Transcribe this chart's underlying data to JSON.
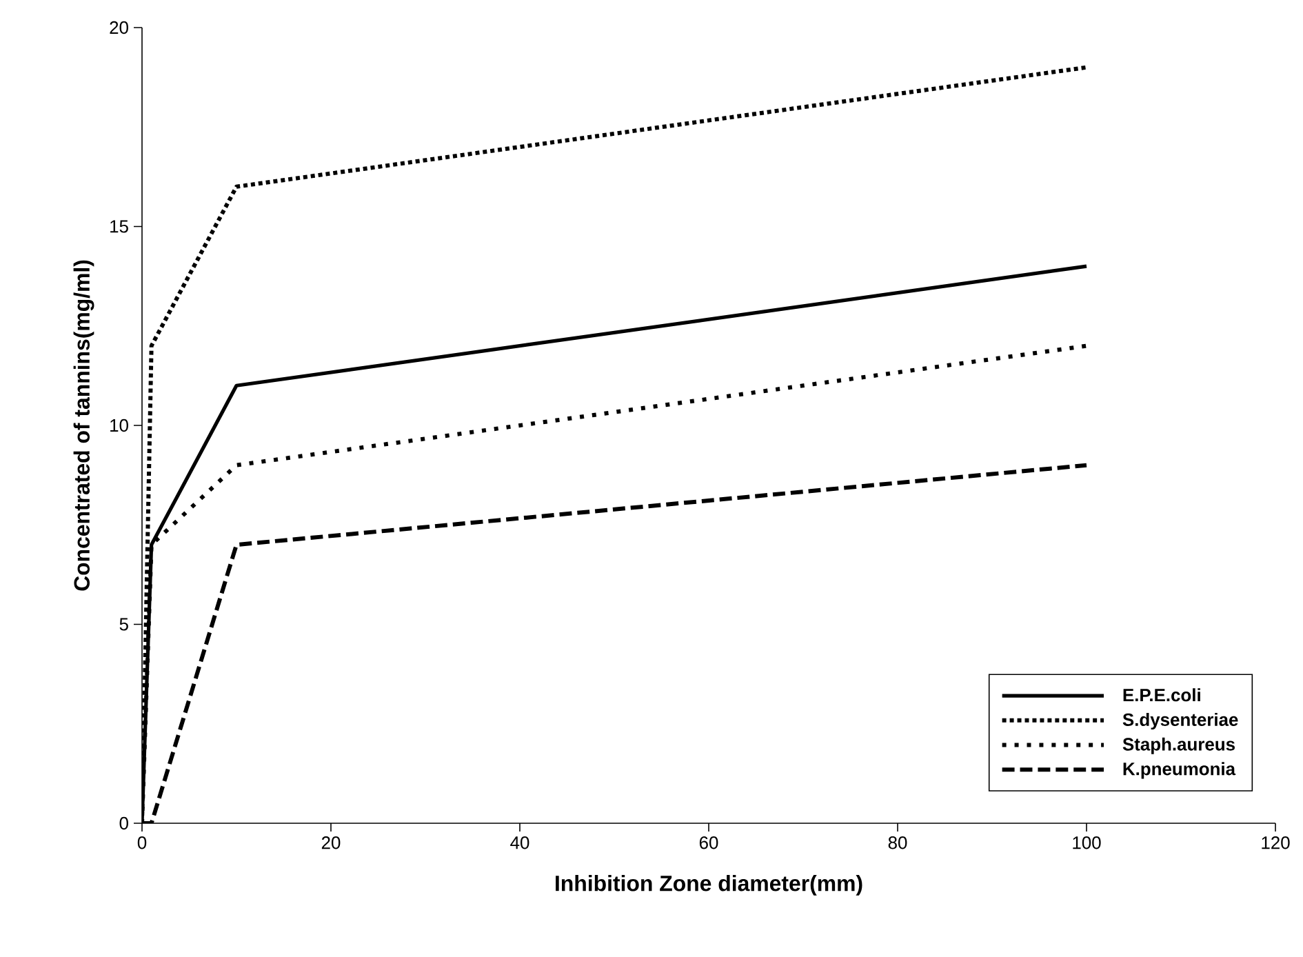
{
  "chart_data": {
    "type": "line",
    "xlabel": "Inhibition Zone diameter(mm)",
    "ylabel": "Concentrated of tannins(mg/ml)",
    "xlim": [
      0,
      120
    ],
    "xticks": [
      0,
      20,
      40,
      60,
      80,
      100,
      120
    ],
    "ylim": [
      0,
      20
    ],
    "yticks": [
      0,
      5,
      10,
      15,
      20
    ],
    "grid": false,
    "legend": "bottom right",
    "marker": "none",
    "series": [
      {
        "name": "E.P.E.coli",
        "color": "#000000",
        "line_style": "solid",
        "x": [
          0,
          1,
          10,
          100
        ],
        "values": [
          0,
          7,
          11,
          14
        ]
      },
      {
        "name": "S.dysenteriae",
        "color": "#000000",
        "line_style": "dotted",
        "x": [
          0,
          1,
          10,
          100
        ],
        "values": [
          0,
          12,
          16,
          19
        ]
      },
      {
        "name": "Staph.aureus",
        "color": "#000000",
        "line_style": "dotted",
        "x": [
          0,
          1,
          10,
          100
        ],
        "values": [
          0,
          7,
          9,
          12
        ]
      },
      {
        "name": "K.pneumonia",
        "color": "#000000",
        "line_style": "dashed",
        "x": [
          0,
          1,
          10,
          100
        ],
        "values": [
          0,
          0,
          7,
          9
        ]
      }
    ]
  }
}
